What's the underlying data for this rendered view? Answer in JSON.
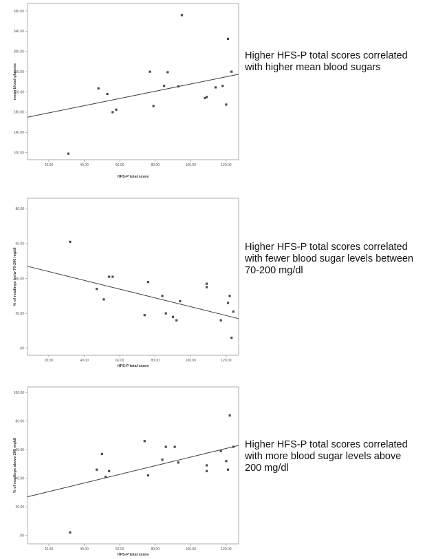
{
  "chart_data": [
    {
      "type": "scatter",
      "xlabel": "HFS-P total score",
      "ylabel": "mean blood glucose",
      "xticks": [
        "20.00",
        "40.00",
        "60.00",
        "80.00",
        "100.00",
        "120.00"
      ],
      "yticks": [
        "100.00",
        "140.00",
        "180.00",
        "220.00",
        "260.00",
        "300.00",
        "340.00",
        "380.00"
      ],
      "xlim": [
        8,
        127
      ],
      "ylim": [
        86,
        395
      ],
      "points": [
        {
          "x": 31,
          "y": 98
        },
        {
          "x": 48,
          "y": 227
        },
        {
          "x": 53,
          "y": 216
        },
        {
          "x": 56,
          "y": 180
        },
        {
          "x": 58,
          "y": 185
        },
        {
          "x": 77,
          "y": 260
        },
        {
          "x": 79,
          "y": 192
        },
        {
          "x": 85,
          "y": 232
        },
        {
          "x": 87,
          "y": 259
        },
        {
          "x": 93,
          "y": 231
        },
        {
          "x": 95,
          "y": 372
        },
        {
          "x": 108,
          "y": 208
        },
        {
          "x": 109,
          "y": 210
        },
        {
          "x": 114,
          "y": 229
        },
        {
          "x": 118,
          "y": 232
        },
        {
          "x": 120,
          "y": 195
        },
        {
          "x": 121,
          "y": 325
        },
        {
          "x": 123,
          "y": 260
        }
      ],
      "fit_line": [
        {
          "x": 8,
          "y": 170
        },
        {
          "x": 127,
          "y": 255
        }
      ],
      "caption": [
        "Higher HFS-P total scores correlated",
        "with higher mean blood sugars"
      ]
    },
    {
      "type": "scatter",
      "xlabel": "HFS-P total score",
      "ylabel": "% of readings betw 70-200 mg/dl",
      "xticks": [
        "20.00",
        "40.00",
        "60.00",
        "80.00",
        "100.00",
        "120.00"
      ],
      "yticks": [
        ".00",
        "20.00",
        "40.00",
        "60.00",
        "80.00"
      ],
      "xlim": [
        8,
        127
      ],
      "ylim": [
        -4,
        86
      ],
      "points": [
        {
          "x": 32,
          "y": 61
        },
        {
          "x": 47,
          "y": 34
        },
        {
          "x": 51,
          "y": 28
        },
        {
          "x": 54,
          "y": 41
        },
        {
          "x": 56,
          "y": 41
        },
        {
          "x": 74,
          "y": 19
        },
        {
          "x": 76,
          "y": 38
        },
        {
          "x": 84,
          "y": 30
        },
        {
          "x": 86,
          "y": 20
        },
        {
          "x": 90,
          "y": 18
        },
        {
          "x": 92,
          "y": 16
        },
        {
          "x": 94,
          "y": 27
        },
        {
          "x": 109,
          "y": 35
        },
        {
          "x": 109,
          "y": 37
        },
        {
          "x": 117,
          "y": 16
        },
        {
          "x": 121,
          "y": 26
        },
        {
          "x": 122,
          "y": 30
        },
        {
          "x": 123,
          "y": 6
        },
        {
          "x": 124,
          "y": 21
        }
      ],
      "fit_line": [
        {
          "x": 8,
          "y": 47
        },
        {
          "x": 127,
          "y": 17
        }
      ],
      "caption": [
        "Higher HFS-P total scores correlated",
        "with fewer blood sugar levels between",
        "70-200 mg/dl"
      ]
    },
    {
      "type": "scatter",
      "xlabel": "HFS-P total score",
      "ylabel": "% of readings above 200 mg/dl",
      "xticks": [
        "20.00",
        "40.00",
        "60.00",
        "80.00",
        "100.00",
        "120.00"
      ],
      "yticks": [
        ".00",
        "20.00",
        "40.00",
        "60.00",
        "80.00",
        "100.00"
      ],
      "xlim": [
        8,
        127
      ],
      "ylim": [
        -6,
        104
      ],
      "points": [
        {
          "x": 32,
          "y": 2
        },
        {
          "x": 47,
          "y": 46
        },
        {
          "x": 50,
          "y": 57
        },
        {
          "x": 52,
          "y": 41
        },
        {
          "x": 54,
          "y": 45
        },
        {
          "x": 74,
          "y": 66
        },
        {
          "x": 76,
          "y": 42
        },
        {
          "x": 84,
          "y": 53
        },
        {
          "x": 86,
          "y": 62
        },
        {
          "x": 91,
          "y": 62
        },
        {
          "x": 93,
          "y": 51
        },
        {
          "x": 109,
          "y": 49
        },
        {
          "x": 109,
          "y": 45
        },
        {
          "x": 117,
          "y": 59
        },
        {
          "x": 120,
          "y": 52
        },
        {
          "x": 121,
          "y": 46
        },
        {
          "x": 122,
          "y": 84
        },
        {
          "x": 124,
          "y": 62
        }
      ],
      "fit_line": [
        {
          "x": 8,
          "y": 27
        },
        {
          "x": 127,
          "y": 63
        }
      ],
      "caption": [
        "Higher HFS-P total scores correlated",
        "with more blood sugar levels above",
        "200 mg/dl"
      ]
    }
  ]
}
